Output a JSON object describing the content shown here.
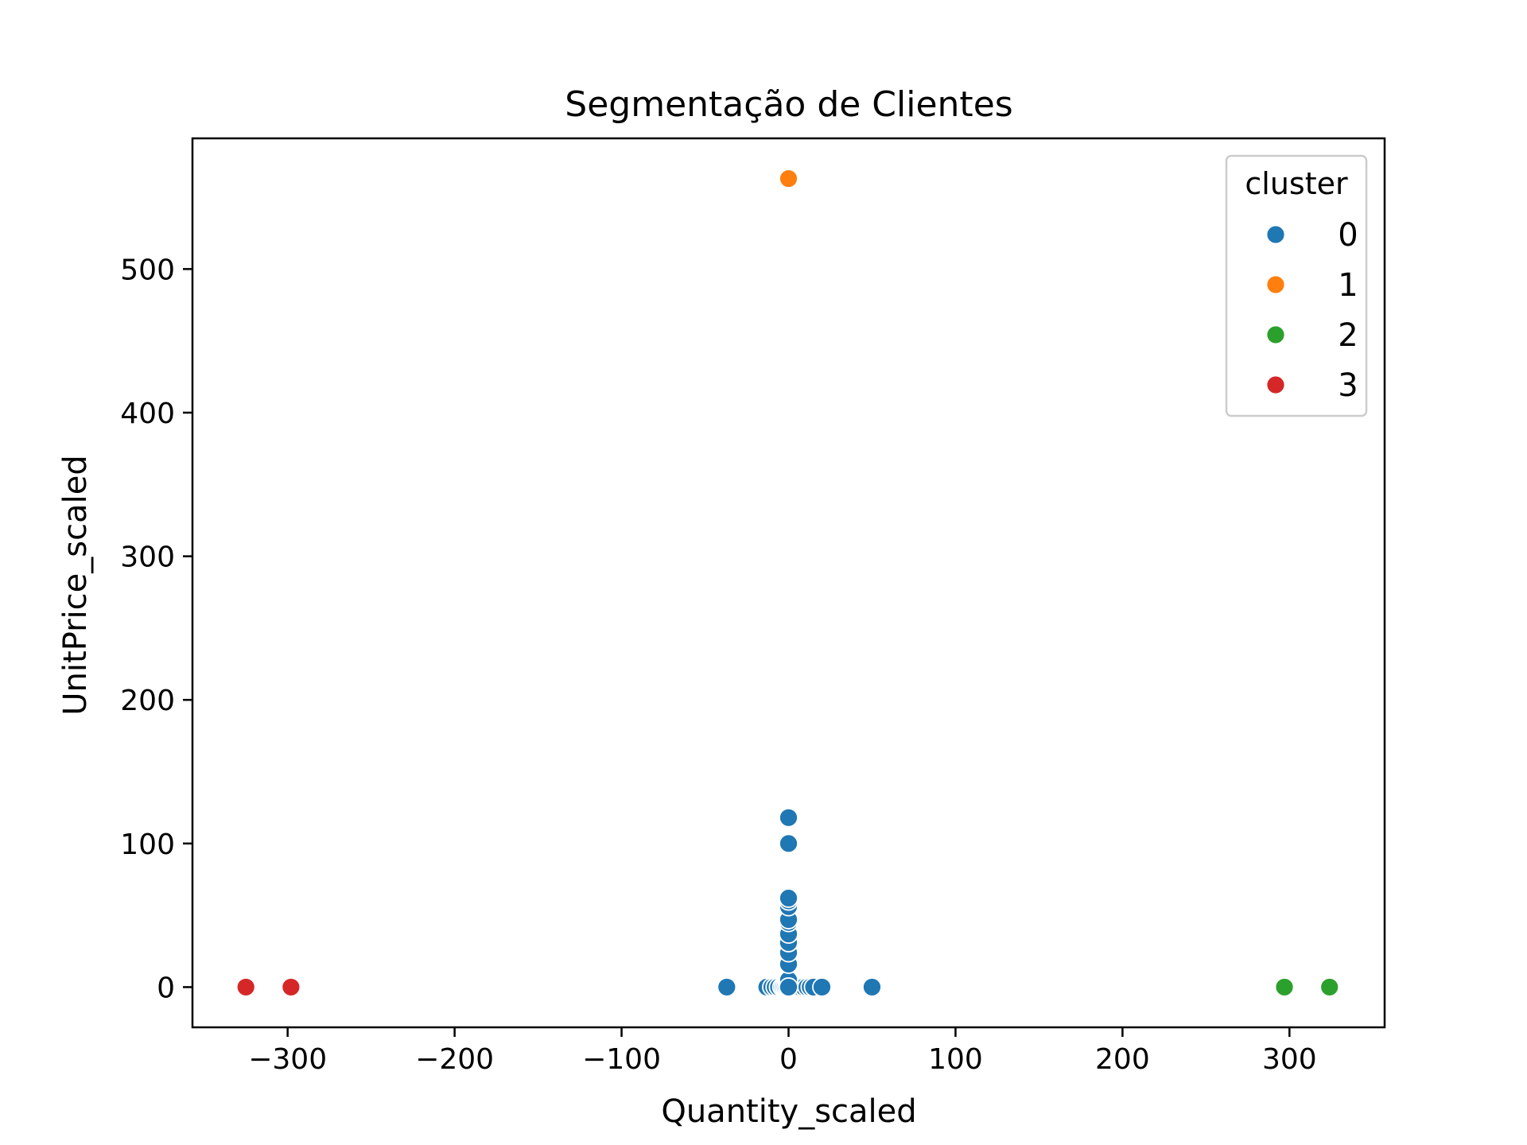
{
  "chart_data": {
    "type": "scatter",
    "title": "Segmentação de Clientes",
    "xlabel": "Quantity_scaled",
    "ylabel": "UnitPrice_scaled",
    "xlim": [
      -357,
      357
    ],
    "ylim": [
      -28,
      591
    ],
    "xticks": [
      -300,
      -200,
      -100,
      0,
      100,
      200,
      300
    ],
    "xtick_labels": [
      "−300",
      "−200",
      "−100",
      "0",
      "100",
      "200",
      "300"
    ],
    "yticks": [
      0,
      100,
      200,
      300,
      400,
      500
    ],
    "ytick_labels": [
      "0",
      "100",
      "200",
      "300",
      "400",
      "500"
    ],
    "grid": false,
    "legend": {
      "title": "cluster",
      "placement": "top-right",
      "entries": [
        "0",
        "1",
        "2",
        "3"
      ]
    },
    "series": [
      {
        "name": "0",
        "color": "#1f77b4",
        "points": [
          [
            -37,
            0
          ],
          [
            -13,
            0
          ],
          [
            -10,
            0
          ],
          [
            -8,
            0
          ],
          [
            -6,
            0
          ],
          [
            -4,
            0
          ],
          [
            -3,
            0
          ],
          [
            -2,
            0
          ],
          [
            -1,
            0
          ],
          [
            1,
            0
          ],
          [
            2,
            0
          ],
          [
            3,
            0
          ],
          [
            5,
            0
          ],
          [
            7,
            0
          ],
          [
            9,
            0
          ],
          [
            11,
            0
          ],
          [
            13,
            0
          ],
          [
            15,
            0
          ],
          [
            20,
            0
          ],
          [
            50,
            0
          ],
          [
            0,
            2
          ],
          [
            0,
            5
          ],
          [
            0,
            16
          ],
          [
            0,
            24
          ],
          [
            0,
            31
          ],
          [
            0,
            37
          ],
          [
            0,
            45
          ],
          [
            0,
            47
          ],
          [
            0,
            56
          ],
          [
            0,
            60
          ],
          [
            0,
            62
          ],
          [
            0,
            100
          ],
          [
            0,
            118
          ],
          [
            0,
            0
          ]
        ]
      },
      {
        "name": "1",
        "color": "#ff7f0e",
        "points": [
          [
            0,
            563
          ]
        ]
      },
      {
        "name": "2",
        "color": "#2ca02c",
        "points": [
          [
            297,
            0
          ],
          [
            324,
            0
          ]
        ]
      },
      {
        "name": "3",
        "color": "#d62728",
        "points": [
          [
            -325,
            0
          ],
          [
            -298,
            0
          ]
        ]
      }
    ]
  }
}
